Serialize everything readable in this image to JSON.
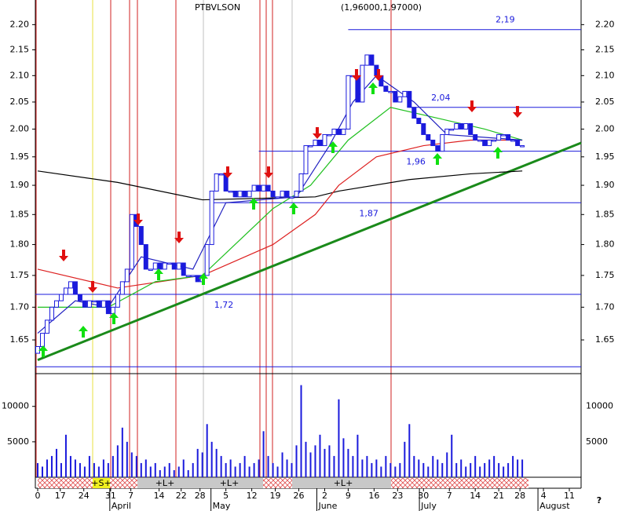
{
  "chart_data": {
    "type": "candlestick",
    "title": "PTBVLSON",
    "subtitle": "(1,96000,1,97000)",
    "log_scale": true,
    "ylim": [
      1.6,
      2.25
    ],
    "yticks": [
      {
        "value": 1.65,
        "label": "1.65"
      },
      {
        "value": 1.7,
        "label": "1.70"
      },
      {
        "value": 1.75,
        "label": "1.75"
      },
      {
        "value": 1.8,
        "label": "1.80"
      },
      {
        "value": 1.85,
        "label": "1.85"
      },
      {
        "value": 1.9,
        "label": "1.90"
      },
      {
        "value": 1.95,
        "label": "1.95"
      },
      {
        "value": 2.0,
        "label": "2.00"
      },
      {
        "value": 2.05,
        "label": "2.05"
      },
      {
        "value": 2.1,
        "label": "2.10"
      },
      {
        "value": 2.15,
        "label": "2.15"
      },
      {
        "value": 2.2,
        "label": "2.20"
      }
    ],
    "xlim": [
      -0.5,
      115.5
    ],
    "xticks": [
      {
        "value": 0,
        "label": "0"
      },
      {
        "value": 4.8,
        "label": "17"
      },
      {
        "value": 9.8,
        "label": "24"
      },
      {
        "value": 15.5,
        "label": "31"
      },
      {
        "value": 19.8,
        "label": "7"
      },
      {
        "value": 25.8,
        "label": "14"
      },
      {
        "value": 30.5,
        "label": "22"
      },
      {
        "value": 34.5,
        "label": "28"
      },
      {
        "value": 40,
        "label": "5"
      },
      {
        "value": 45.5,
        "label": "12"
      },
      {
        "value": 50.5,
        "label": "19"
      },
      {
        "value": 55.5,
        "label": "26"
      },
      {
        "value": 61,
        "label": "2"
      },
      {
        "value": 66,
        "label": "9"
      },
      {
        "value": 71.5,
        "label": "16"
      },
      {
        "value": 76.5,
        "label": "23"
      },
      {
        "value": 82,
        "label": "30"
      },
      {
        "value": 87.5,
        "label": "7"
      },
      {
        "value": 93,
        "label": "14"
      },
      {
        "value": 98,
        "label": "21"
      },
      {
        "value": 102.5,
        "label": "28"
      },
      {
        "value": 107.5,
        "label": "4"
      },
      {
        "value": 113,
        "label": "11"
      }
    ],
    "months": [
      {
        "value": 17,
        "label": "April"
      },
      {
        "value": 38.5,
        "label": "May"
      },
      {
        "value": 61,
        "label": "June"
      },
      {
        "value": 82.8,
        "label": "July"
      },
      {
        "value": 108,
        "label": "August"
      }
    ],
    "close": [
      1.64,
      1.66,
      1.68,
      1.7,
      1.71,
      1.72,
      1.73,
      1.74,
      1.72,
      1.71,
      1.7,
      1.71,
      1.71,
      1.7,
      1.71,
      1.69,
      1.7,
      1.72,
      1.74,
      1.76,
      1.85,
      1.83,
      1.8,
      1.76,
      1.76,
      1.77,
      1.76,
      1.77,
      1.77,
      1.76,
      1.77,
      1.75,
      1.75,
      1.75,
      1.74,
      1.75,
      1.8,
      1.89,
      1.92,
      1.92,
      1.89,
      1.89,
      1.88,
      1.89,
      1.88,
      1.89,
      1.9,
      1.89,
      1.9,
      1.89,
      1.88,
      1.88,
      1.89,
      1.88,
      1.88,
      1.89,
      1.92,
      1.97,
      1.97,
      1.98,
      1.97,
      1.99,
      1.99,
      2.0,
      1.99,
      2.0,
      2.1,
      2.1,
      2.05,
      2.12,
      2.14,
      2.12,
      2.1,
      2.08,
      2.07,
      2.07,
      2.05,
      2.06,
      2.07,
      2.04,
      2.02,
      2.01,
      1.99,
      1.98,
      1.97,
      1.96,
      1.99,
      2.0,
      2.0,
      2.01,
      2.0,
      2.01,
      1.99,
      1.98,
      1.98,
      1.97,
      1.98,
      1.98,
      1.99,
      1.99,
      1.98,
      1.98,
      1.97,
      1.97
    ],
    "open": [
      1.63,
      1.64,
      1.66,
      1.68,
      1.7,
      1.71,
      1.72,
      1.73,
      1.74,
      1.72,
      1.71,
      1.7,
      1.71,
      1.71,
      1.7,
      1.71,
      1.69,
      1.7,
      1.72,
      1.74,
      1.76,
      1.85,
      1.83,
      1.8,
      1.76,
      1.76,
      1.77,
      1.76,
      1.77,
      1.77,
      1.76,
      1.77,
      1.75,
      1.75,
      1.75,
      1.74,
      1.75,
      1.8,
      1.89,
      1.92,
      1.92,
      1.89,
      1.89,
      1.88,
      1.89,
      1.88,
      1.89,
      1.9,
      1.89,
      1.9,
      1.89,
      1.88,
      1.88,
      1.89,
      1.88,
      1.88,
      1.89,
      1.92,
      1.97,
      1.97,
      1.98,
      1.97,
      1.99,
      1.99,
      2.0,
      1.99,
      2.0,
      2.1,
      2.1,
      2.05,
      2.12,
      2.14,
      2.12,
      2.1,
      2.08,
      2.07,
      2.07,
      2.05,
      2.06,
      2.07,
      2.04,
      2.02,
      2.01,
      1.99,
      1.98,
      1.97,
      1.96,
      1.99,
      2.0,
      2.0,
      2.01,
      2.0,
      2.01,
      1.99,
      1.98,
      1.98,
      1.97,
      1.98,
      1.98,
      1.99,
      1.99,
      1.98,
      1.98,
      1.97
    ],
    "candle_color": "#1a1adc",
    "moving_averages": [
      {
        "color": "#000000",
        "x": [
          0,
          17,
          35,
          59,
          64,
          79,
          92,
          103
        ],
        "values": [
          1.925,
          1.905,
          1.875,
          1.88,
          1.89,
          1.91,
          1.92,
          1.925
        ]
      },
      {
        "color": "#dd2020",
        "x": [
          0,
          17,
          35,
          50,
          59,
          64,
          72,
          82,
          92,
          103
        ],
        "values": [
          1.76,
          1.73,
          1.75,
          1.8,
          1.85,
          1.9,
          1.95,
          1.97,
          1.98,
          1.98
        ]
      },
      {
        "color": "#20c020",
        "x": [
          0,
          15,
          25,
          35,
          50,
          58,
          66,
          75,
          85,
          95,
          103
        ],
        "values": [
          1.7,
          1.7,
          1.74,
          1.75,
          1.86,
          1.9,
          1.98,
          2.04,
          2.02,
          2.0,
          1.98
        ]
      },
      {
        "color": "#2020c0",
        "x": [
          0,
          8,
          15,
          22,
          33,
          40,
          55,
          62,
          67,
          72,
          80,
          87,
          103
        ],
        "values": [
          1.66,
          1.71,
          1.7,
          1.78,
          1.76,
          1.87,
          1.88,
          1.97,
          2.05,
          2.1,
          2.05,
          1.99,
          1.98
        ]
      }
    ],
    "levels": [
      {
        "value": 2.19,
        "label": "2,19",
        "x": [
          66,
          115.5
        ]
      },
      {
        "value": 2.04,
        "label": "2,04",
        "x": [
          79,
          115.5
        ]
      },
      {
        "value": 1.96,
        "label": "1,96",
        "x": [
          47,
          115.5
        ]
      },
      {
        "value": 1.87,
        "label": "1,87",
        "x": [
          37,
          115.5
        ]
      },
      {
        "value": 1.72,
        "label": "1,72",
        "x": [
          -0.5,
          115.5
        ]
      },
      {
        "value": 1.61,
        "x": [
          -0.5,
          115.5
        ]
      }
    ],
    "trendline": {
      "color": "#1a8a1a",
      "x": [
        0,
        115.5
      ],
      "values": [
        1.62,
        1.975
      ]
    },
    "volume": {
      "ylim": [
        0,
        14400
      ],
      "yticks": [
        5000,
        10000
      ],
      "color": "#1a1adc",
      "values": [
        2000,
        1500,
        2500,
        3000,
        4000,
        2000,
        6000,
        3000,
        2500,
        2000,
        1500,
        3000,
        2000,
        1500,
        2500,
        2000,
        3000,
        4500,
        7000,
        5000,
        3500,
        3000,
        2000,
        2500,
        1500,
        2000,
        1000,
        1500,
        2000,
        1000,
        1500,
        2500,
        1000,
        2000,
        4000,
        3500,
        7500,
        5000,
        4000,
        3000,
        2000,
        2500,
        1500,
        2000,
        3000,
        1500,
        2000,
        2500,
        6500,
        3000,
        2000,
        1500,
        3500,
        2500,
        2000,
        4500,
        13000,
        5000,
        3500,
        4500,
        6000,
        4000,
        4500,
        3000,
        11000,
        5500,
        4000,
        3000,
        6000,
        2500,
        3000,
        2000,
        2500,
        1500,
        3000,
        2000,
        1500,
        2000,
        5000,
        7500,
        3000,
        2500,
        2000,
        1500,
        3000,
        2500,
        2000,
        3500,
        6000,
        2000,
        2500,
        1500,
        2000,
        3000,
        1500,
        2000,
        2500,
        3000,
        2000,
        1500,
        2000,
        3000,
        2500,
        2500
      ]
    },
    "strip_labels": [
      "+S+",
      "+L+",
      "+L+",
      "+L+"
    ],
    "help": "?"
  }
}
